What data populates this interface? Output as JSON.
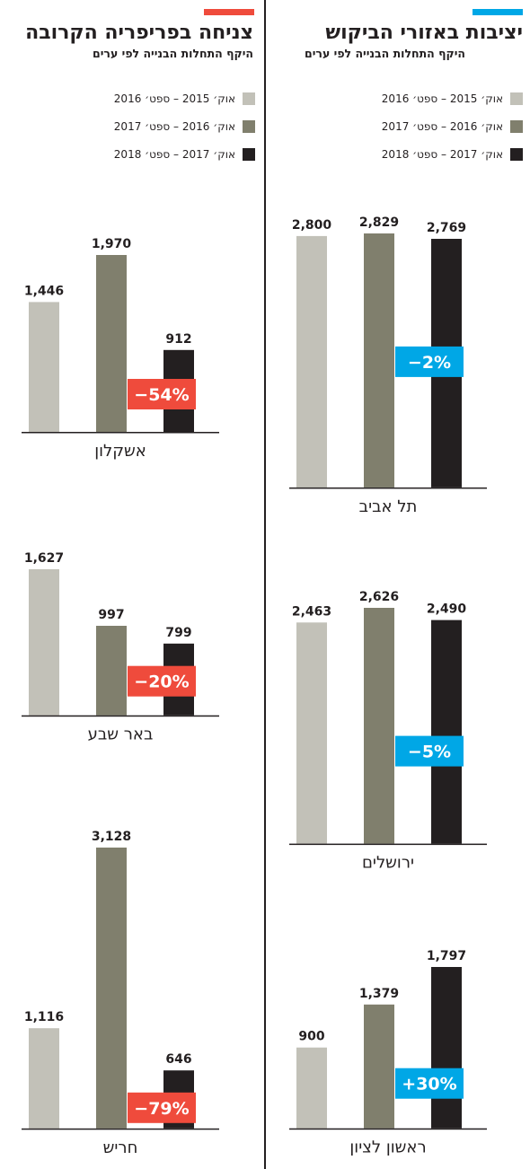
{
  "colors": {
    "period1": "#c2c1b8",
    "period2": "#807f6d",
    "period3": "#231f20",
    "blue_accent": "#00a7e6",
    "red_accent": "#ef4b3c"
  },
  "legend_labels": [
    "אוק׳ 2015 – ספט׳ 2016",
    "אוק׳ 2016 – ספט׳ 2017",
    "אוק׳ 2017 – ספט׳ 2018"
  ],
  "right_panel": {
    "title": "יציבות באזורי הביקוש",
    "subtitle": "היקף התחלות הבנייה לפי ערים"
  },
  "left_panel": {
    "title": "צניחה בפריפריה הקרובה",
    "subtitle": "היקף התחלות הבנייה לפי ערים"
  },
  "chart_data": [
    {
      "type": "bar",
      "panel": "right",
      "city": "תל אביב",
      "categories": [
        "אוק׳ 2015 – ספט׳ 2016",
        "אוק׳ 2016 – ספט׳ 2017",
        "אוק׳ 2017 – ספט׳ 2018"
      ],
      "values": [
        2800,
        2829,
        2769
      ],
      "value_labels": [
        "2,800",
        "2,829",
        "2,769"
      ],
      "change": "−2%"
    },
    {
      "type": "bar",
      "panel": "right",
      "city": "ירושלים",
      "categories": [
        "אוק׳ 2015 – ספט׳ 2016",
        "אוק׳ 2016 – ספט׳ 2017",
        "אוק׳ 2017 – ספט׳ 2018"
      ],
      "values": [
        2463,
        2626,
        2490
      ],
      "value_labels": [
        "2,463",
        "2,626",
        "2,490"
      ],
      "change": "−5%"
    },
    {
      "type": "bar",
      "panel": "right",
      "city": "ראשון לציון",
      "categories": [
        "אוק׳ 2015 – ספט׳ 2016",
        "אוק׳ 2016 – ספט׳ 2017",
        "אוק׳ 2017 – ספט׳ 2018"
      ],
      "values": [
        900,
        1379,
        1797
      ],
      "value_labels": [
        "900",
        "1,379",
        "1,797"
      ],
      "change": "+30%"
    },
    {
      "type": "bar",
      "panel": "left",
      "city": "אשקלון",
      "categories": [
        "אוק׳ 2015 – ספט׳ 2016",
        "אוק׳ 2016 – ספט׳ 2017",
        "אוק׳ 2017 – ספט׳ 2018"
      ],
      "values": [
        1446,
        1970,
        912
      ],
      "value_labels": [
        "1,446",
        "1,970",
        "912"
      ],
      "change": "−54%"
    },
    {
      "type": "bar",
      "panel": "left",
      "city": "באר שבע",
      "categories": [
        "אוק׳ 2015 – ספט׳ 2016",
        "אוק׳ 2016 – ספט׳ 2017",
        "אוק׳ 2017 – ספט׳ 2018"
      ],
      "values": [
        1627,
        997,
        799
      ],
      "value_labels": [
        "1,627",
        "997",
        "799"
      ],
      "change": "−20%"
    },
    {
      "type": "bar",
      "panel": "left",
      "city": "חריש",
      "categories": [
        "אוק׳ 2015 – ספט׳ 2016",
        "אוק׳ 2016 – ספט׳ 2017",
        "אוק׳ 2017 – ספט׳ 2018"
      ],
      "values": [
        1116,
        3128,
        646
      ],
      "value_labels": [
        "1,116",
        "3,128",
        "646"
      ],
      "change": "−79%"
    }
  ]
}
